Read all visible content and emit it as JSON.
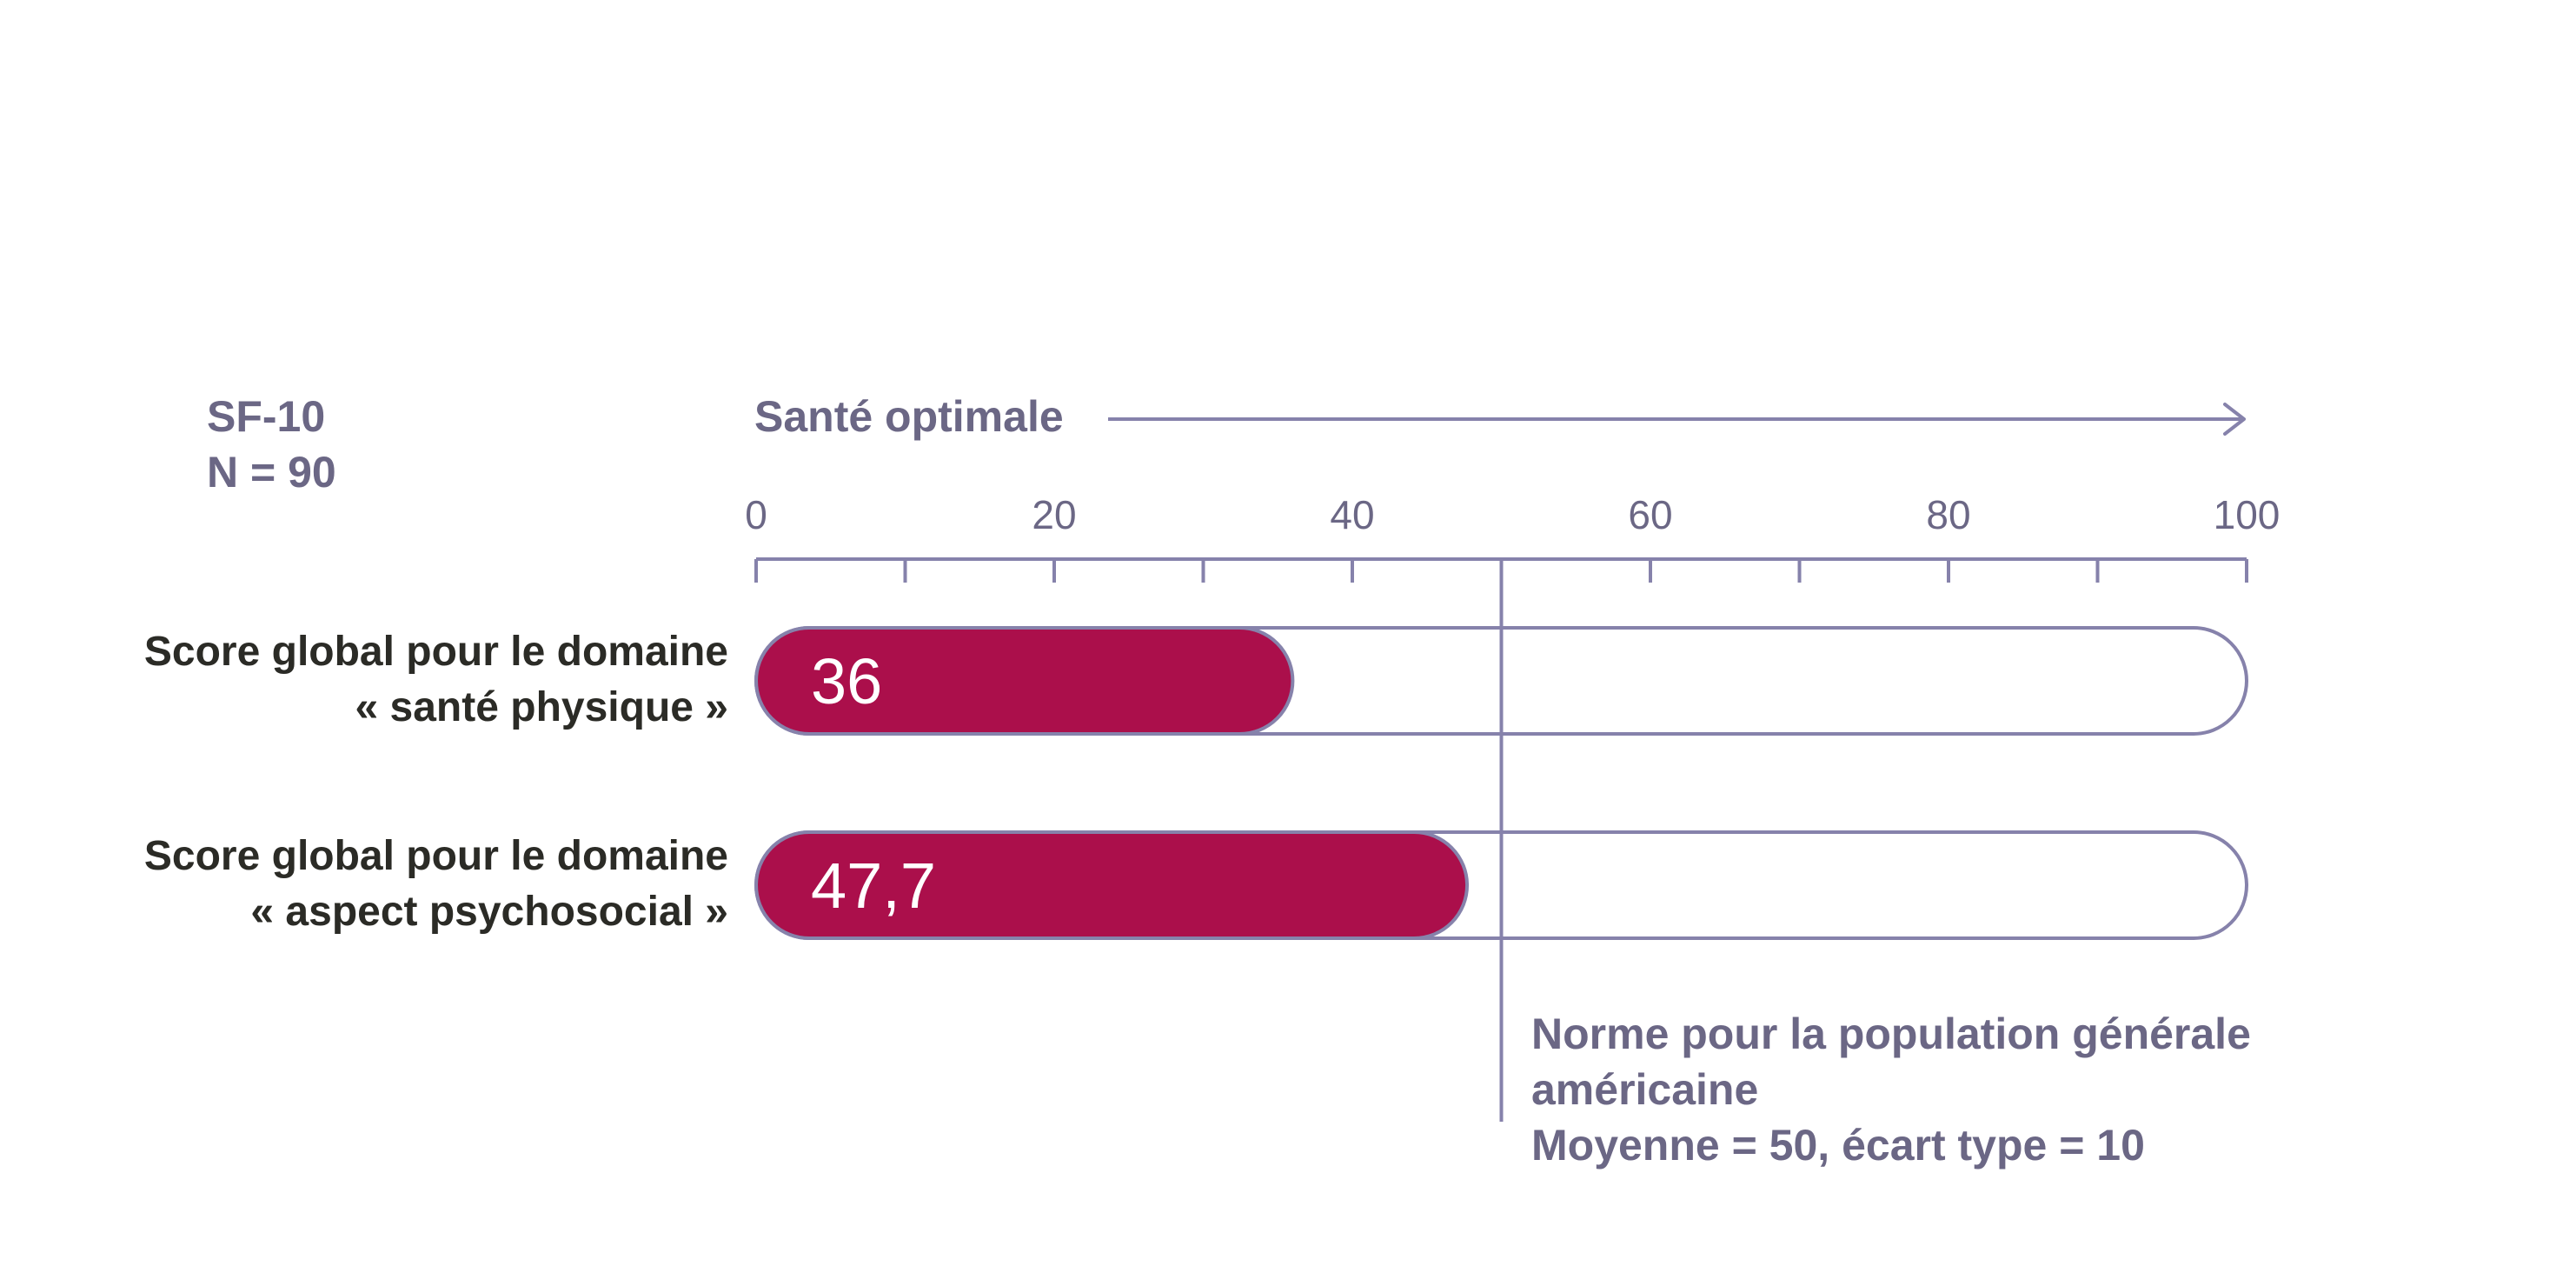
{
  "panel": {
    "instrument": "SF-10",
    "sample": "N = 90"
  },
  "colors": {
    "bar_fill": "#ab0f4b",
    "outline": "#8682ab",
    "label_grey": "#6b6785",
    "label_dark": "#2b2b26"
  },
  "chart_data": {
    "type": "bar",
    "orientation": "horizontal",
    "axis_title": "Santé optimale",
    "xlim": [
      0,
      100
    ],
    "ticks_labeled": [
      0,
      20,
      40,
      60,
      80,
      100
    ],
    "ticks_minor": [
      10,
      30,
      50,
      70,
      90
    ],
    "categories": [
      [
        "Score global pour le domaine",
        "« santé physique »"
      ],
      [
        "Score global pour le domaine",
        "« aspect psychosocial »"
      ]
    ],
    "values": [
      36,
      47.7
    ],
    "value_labels": [
      "36",
      "47,7"
    ],
    "reference": {
      "value": 50,
      "label_lines": [
        "Norme pour la population générale",
        "américaine",
        "Moyenne = 50, écart type = 10"
      ]
    }
  }
}
